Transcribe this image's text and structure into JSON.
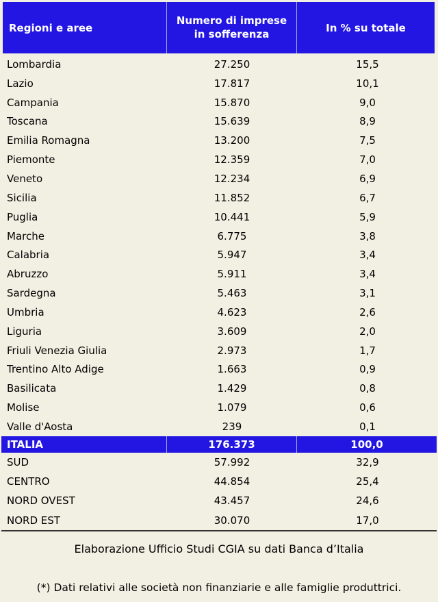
{
  "colors": {
    "page_bg": "#F2F0E3",
    "header_bg": "#2316E3",
    "header_text": "#FFFFFF",
    "header_divider": "#A9A4DC",
    "text": "#000000"
  },
  "table": {
    "columns": {
      "regions_label": "Regioni e aree",
      "number_label": "Numero di imprese\nin sofferenza",
      "percent_label": "In % su totale"
    },
    "rows": [
      {
        "region": "Lombardia",
        "value": "27.250",
        "pct": "15,5"
      },
      {
        "region": "Lazio",
        "value": "17.817",
        "pct": "10,1"
      },
      {
        "region": "Campania",
        "value": "15.870",
        "pct": "9,0"
      },
      {
        "region": "Toscana",
        "value": "15.639",
        "pct": "8,9"
      },
      {
        "region": "Emilia Romagna",
        "value": "13.200",
        "pct": "7,5"
      },
      {
        "region": "Piemonte",
        "value": "12.359",
        "pct": "7,0"
      },
      {
        "region": "Veneto",
        "value": "12.234",
        "pct": "6,9"
      },
      {
        "region": "Sicilia",
        "value": "11.852",
        "pct": "6,7"
      },
      {
        "region": "Puglia",
        "value": "10.441",
        "pct": "5,9"
      },
      {
        "region": "Marche",
        "value": "6.775",
        "pct": "3,8"
      },
      {
        "region": "Calabria",
        "value": "5.947",
        "pct": "3,4"
      },
      {
        "region": "Abruzzo",
        "value": "5.911",
        "pct": "3,4"
      },
      {
        "region": "Sardegna",
        "value": "5.463",
        "pct": "3,1"
      },
      {
        "region": "Umbria",
        "value": "4.623",
        "pct": "2,6"
      },
      {
        "region": "Liguria",
        "value": "3.609",
        "pct": "2,0"
      },
      {
        "region": "Friuli Venezia Giulia",
        "value": "2.973",
        "pct": "1,7"
      },
      {
        "region": "Trentino Alto Adige",
        "value": "1.663",
        "pct": "0,9"
      },
      {
        "region": "Basilicata",
        "value": "1.429",
        "pct": "0,8"
      },
      {
        "region": "Molise",
        "value": "1.079",
        "pct": "0,6"
      },
      {
        "region": "Valle d'Aosta",
        "value": "239",
        "pct": "0,1"
      }
    ],
    "total_row": {
      "region": "ITALIA",
      "value": "176.373",
      "pct": "100,0"
    },
    "macro_rows": [
      {
        "region": "SUD",
        "value": "57.992",
        "pct": "32,9"
      },
      {
        "region": "CENTRO",
        "value": "44.854",
        "pct": "25,4"
      },
      {
        "region": "NORD OVEST",
        "value": "43.457",
        "pct": "24,6"
      },
      {
        "region": "NORD EST",
        "value": "30.070",
        "pct": "17,0"
      }
    ]
  },
  "footer": {
    "source": "Elaborazione Ufficio Studi CGIA su dati Banca d’Italia",
    "note": "(*) Dati relativi alle società non finanziarie e alle famiglie produttrici."
  }
}
